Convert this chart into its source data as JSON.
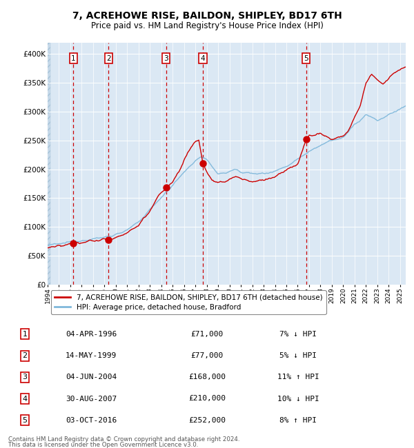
{
  "title": "7, ACREHOWE RISE, BAILDON, SHIPLEY, BD17 6TH",
  "subtitle": "Price paid vs. HM Land Registry's House Price Index (HPI)",
  "title_fontsize": 10,
  "subtitle_fontsize": 8.5,
  "plot_bg_color": "#dbe8f4",
  "hpi_line_color": "#7fb8db",
  "price_line_color": "#cc0000",
  "dot_color": "#cc0000",
  "dashed_line_color": "#cc0000",
  "ylim": [
    0,
    420000
  ],
  "yticks": [
    0,
    50000,
    100000,
    150000,
    200000,
    250000,
    300000,
    350000,
    400000
  ],
  "ytick_labels": [
    "£0",
    "£50K",
    "£100K",
    "£150K",
    "£200K",
    "£250K",
    "£300K",
    "£350K",
    "£400K"
  ],
  "sale_dates_x": [
    1996.27,
    1999.37,
    2004.43,
    2007.66,
    2016.75
  ],
  "sale_prices_y": [
    71000,
    77000,
    168000,
    210000,
    252000
  ],
  "sale_labels": [
    "1",
    "2",
    "3",
    "4",
    "5"
  ],
  "sale_info": [
    {
      "num": "1",
      "date": "04-APR-1996",
      "price": "£71,000",
      "hpi": "7% ↓ HPI"
    },
    {
      "num": "2",
      "date": "14-MAY-1999",
      "price": "£77,000",
      "hpi": "5% ↓ HPI"
    },
    {
      "num": "3",
      "date": "04-JUN-2004",
      "price": "£168,000",
      "hpi": "11% ↑ HPI"
    },
    {
      "num": "4",
      "date": "30-AUG-2007",
      "price": "£210,000",
      "hpi": "10% ↓ HPI"
    },
    {
      "num": "5",
      "date": "03-OCT-2016",
      "price": "£252,000",
      "hpi": "8% ↑ HPI"
    }
  ],
  "legend_entries": [
    {
      "label": "7, ACREHOWE RISE, BAILDON, SHIPLEY, BD17 6TH (detached house)",
      "color": "#cc0000"
    },
    {
      "label": "HPI: Average price, detached house, Bradford",
      "color": "#7fb8db"
    }
  ],
  "footer_line1": "Contains HM Land Registry data © Crown copyright and database right 2024.",
  "footer_line2": "This data is licensed under the Open Government Licence v3.0.",
  "xmin": 1994.0,
  "xmax": 2025.5
}
